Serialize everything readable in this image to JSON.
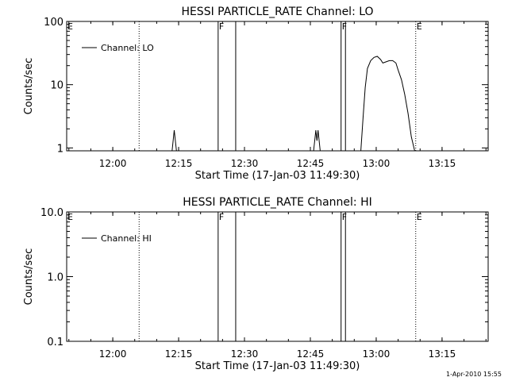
{
  "footer": {
    "timestamp": "1-Apr-2010 15:55"
  },
  "chart_data": [
    {
      "type": "line",
      "title": "HESSI PARTICLE_RATE Channel: LO",
      "xlabel": "Start Time (17-Jan-03 11:49:30)",
      "ylabel": "Counts/sec",
      "yscale": "log",
      "xlim": [
        "11:49:30",
        "13:25:30"
      ],
      "ylim": [
        0.9,
        100
      ],
      "x_ticks": [
        "12:00",
        "12:15",
        "12:30",
        "12:45",
        "13:00",
        "13:15"
      ],
      "y_ticks": [
        "1",
        "10",
        "100"
      ],
      "legend": {
        "placement": "top-left",
        "entries": [
          "Channel: LO"
        ]
      },
      "markers": [
        {
          "label": "E",
          "time": "11:49:30",
          "style": "dotted"
        },
        {
          "label": "",
          "time": "12:06:00",
          "style": "dotted"
        },
        {
          "label": "F",
          "time": "12:24:00",
          "style": "solid"
        },
        {
          "label": "",
          "time": "12:28:00",
          "style": "solid"
        },
        {
          "label": "F",
          "time": "12:52:00",
          "style": "solid"
        },
        {
          "label": "",
          "time": "12:53:00",
          "style": "solid"
        },
        {
          "label": "E",
          "time": "13:09:00",
          "style": "dotted"
        },
        {
          "label": "",
          "time": "13:25:30",
          "style": "dotted"
        }
      ],
      "series": [
        {
          "name": "Channel: LO",
          "segments": [
            {
              "x": [
                "12:13:30",
                "12:14:00",
                "12:14:30"
              ],
              "y": [
                0.9,
                1.9,
                0.9
              ]
            },
            {
              "x": [
                "12:45:45",
                "12:46:15",
                "12:46:30",
                "12:46:45",
                "12:47:15"
              ],
              "y": [
                0.9,
                1.9,
                1.3,
                1.9,
                0.9
              ]
            },
            {
              "x": [
                "12:56:30",
                "12:57:00",
                "12:57:30",
                "12:58:00",
                "12:58:45",
                "12:59:30",
                "13:00:15",
                "13:01:00",
                "13:01:30",
                "13:02:15",
                "13:03:00",
                "13:03:45",
                "13:04:30",
                "13:05:00",
                "13:05:45",
                "13:06:30",
                "13:07:15",
                "13:08:00",
                "13:08:45"
              ],
              "y": [
                0.9,
                3,
                9,
                18,
                24,
                27,
                28,
                25,
                22,
                23,
                24,
                24,
                22,
                17,
                12,
                7,
                3.5,
                1.5,
                0.9
              ]
            }
          ]
        }
      ]
    },
    {
      "type": "line",
      "title": "HESSI PARTICLE_RATE Channel: HI",
      "xlabel": "Start Time (17-Jan-03 11:49:30)",
      "ylabel": "Counts/sec",
      "yscale": "log",
      "xlim": [
        "11:49:30",
        "13:25:30"
      ],
      "ylim": [
        0.1,
        10
      ],
      "x_ticks": [
        "12:00",
        "12:15",
        "12:30",
        "12:45",
        "13:00",
        "13:15"
      ],
      "y_ticks": [
        "0.1",
        "1.0",
        "10.0"
      ],
      "legend": {
        "placement": "top-left",
        "entries": [
          "Channel: HI"
        ]
      },
      "markers": [
        {
          "label": "E",
          "time": "11:49:30",
          "style": "dotted"
        },
        {
          "label": "",
          "time": "12:06:00",
          "style": "dotted"
        },
        {
          "label": "F",
          "time": "12:24:00",
          "style": "solid"
        },
        {
          "label": "",
          "time": "12:28:00",
          "style": "solid"
        },
        {
          "label": "F",
          "time": "12:52:00",
          "style": "solid"
        },
        {
          "label": "",
          "time": "12:53:00",
          "style": "solid"
        },
        {
          "label": "E",
          "time": "13:09:00",
          "style": "dotted"
        },
        {
          "label": "",
          "time": "13:25:30",
          "style": "dotted"
        }
      ],
      "series": [
        {
          "name": "Channel: HI",
          "segments": []
        }
      ]
    }
  ]
}
